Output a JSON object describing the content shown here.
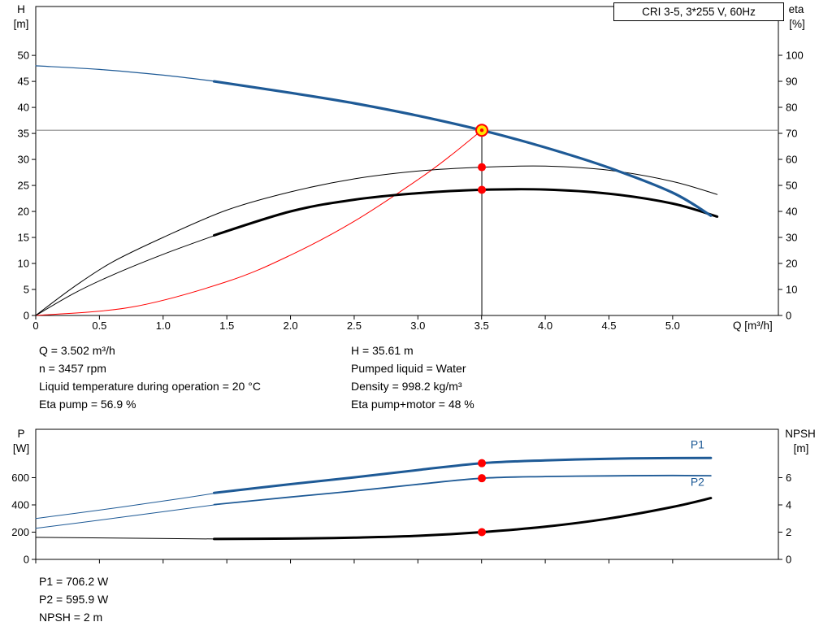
{
  "title_box": {
    "label": "CRI 3-5, 3*255 V, 60Hz"
  },
  "colors": {
    "curve_blue": "#1e5a96",
    "curve_black": "#000000",
    "curve_red": "#ff0000",
    "ref_gray": "#8c8c8c",
    "duty_fill": "#ffe400",
    "dot_red": "#ff0000"
  },
  "chart_data": [
    {
      "type": "line",
      "name": "head-and-efficiency-vs-flow",
      "x_axis": {
        "title": "Q [m³/h]",
        "min": 0,
        "max": 5.83,
        "tick_values": [
          0,
          0.5,
          1,
          1.5,
          2,
          2.5,
          3,
          3.5,
          4,
          4.5,
          5
        ],
        "tick_labels": [
          "0",
          "0.5",
          "1.0",
          "1.5",
          "2.0",
          "2.5",
          "3.0",
          "3.5",
          "4.0",
          "4.5",
          "5.0"
        ]
      },
      "y_left_axis": {
        "title_line1": "H",
        "title_line2": "[m]",
        "min": 0,
        "max": 59.4,
        "tick_values": [
          0,
          5,
          10,
          15,
          20,
          25,
          30,
          35,
          40,
          45,
          50
        ],
        "tick_labels": [
          "0",
          "5",
          "10",
          "15",
          "20",
          "25",
          "30",
          "35",
          "40",
          "45",
          "50"
        ]
      },
      "y_right_axis": {
        "title_line1": "eta",
        "title_line2": "[%]",
        "min": 0,
        "max": 118.75,
        "tick_values": [
          0,
          10,
          20,
          30,
          40,
          50,
          60,
          70,
          80,
          90,
          100
        ],
        "tick_labels": [
          "0",
          "10",
          "20",
          "30",
          "40",
          "50",
          "60",
          "70",
          "80",
          "90",
          "100"
        ]
      },
      "series": [
        {
          "name": "system-curve",
          "axis": "left",
          "color": "curve_red",
          "width": 1,
          "points": [
            [
              0,
              0
            ],
            [
              0.75,
              1.6
            ],
            [
              1.5,
              6.5
            ],
            [
              2.0,
              11.6
            ],
            [
              2.5,
              18.1
            ],
            [
              3.0,
              26.1
            ],
            [
              3.25,
              30.6
            ],
            [
              3.502,
              35.61
            ]
          ]
        },
        {
          "name": "eta-pump-curve",
          "axis": "right",
          "color": "curve_black",
          "width": 1,
          "points": [
            [
              0,
              0
            ],
            [
              0.3,
              11
            ],
            [
              0.6,
              20.5
            ],
            [
              1.0,
              30
            ],
            [
              1.5,
              40.5
            ],
            [
              2.0,
              47.5
            ],
            [
              2.5,
              52.5
            ],
            [
              3.0,
              55.5
            ],
            [
              3.502,
              57
            ],
            [
              4.0,
              57.4
            ],
            [
              4.5,
              55.8
            ],
            [
              5.0,
              51.5
            ],
            [
              5.35,
              46.5
            ]
          ]
        },
        {
          "name": "eta-pump-motor-curve-ext",
          "axis": "right",
          "color": "curve_black",
          "width": 1,
          "points": [
            [
              0,
              0
            ],
            [
              0.3,
              8.5
            ],
            [
              0.6,
              15.5
            ],
            [
              1.0,
              23.5
            ],
            [
              1.42,
              31
            ]
          ]
        },
        {
          "name": "eta-pump-motor-curve",
          "axis": "right",
          "color": "curve_black",
          "width": 3,
          "points": [
            [
              1.4,
              30.8
            ],
            [
              2.0,
              40
            ],
            [
              2.5,
              44.5
            ],
            [
              3.0,
              47
            ],
            [
              3.502,
              48.3
            ],
            [
              4.0,
              48.4
            ],
            [
              4.5,
              46.8
            ],
            [
              5.0,
              43
            ],
            [
              5.35,
              38
            ]
          ]
        },
        {
          "name": "head-curve-ext",
          "axis": "left",
          "color": "curve_blue",
          "width": 1.2,
          "points": [
            [
              0,
              48.0
            ],
            [
              0.5,
              47.3
            ],
            [
              1.0,
              46.2
            ],
            [
              1.45,
              44.9
            ]
          ]
        },
        {
          "name": "head-curve",
          "axis": "left",
          "color": "curve_blue",
          "width": 3.2,
          "points": [
            [
              1.4,
              45.0
            ],
            [
              2.0,
              42.8
            ],
            [
              2.5,
              40.8
            ],
            [
              3.0,
              38.4
            ],
            [
              3.502,
              35.61
            ],
            [
              4.0,
              32.3
            ],
            [
              4.5,
              28.4
            ],
            [
              5.0,
              23.6
            ],
            [
              5.3,
              19.2
            ]
          ]
        }
      ],
      "ref_lines": {
        "vertical_q": 3.502,
        "horizontal_value": 35.61
      },
      "markers": [
        {
          "name": "duty-point",
          "q": 3.502,
          "value": 35.61,
          "axis": "left",
          "style": "duty"
        },
        {
          "name": "eta-pump-point",
          "q": 3.502,
          "value": 57,
          "axis": "right",
          "style": "dot"
        },
        {
          "name": "eta-pump-motor-point",
          "q": 3.502,
          "value": 48.3,
          "axis": "right",
          "style": "dot"
        }
      ],
      "series_labels": []
    },
    {
      "type": "line",
      "name": "power-and-npsh-vs-flow",
      "x_axis": {
        "title": "",
        "min": 0,
        "max": 5.83,
        "tick_values": [
          0,
          0.5,
          1,
          1.5,
          2,
          2.5,
          3,
          3.5,
          4,
          4.5,
          5
        ],
        "tick_labels": []
      },
      "y_left_axis": {
        "title_line1": "P",
        "title_line2": "[W]",
        "min": 0,
        "max": 955,
        "tick_values": [
          0,
          200,
          400,
          600
        ],
        "tick_labels": [
          "0",
          "200",
          "400",
          "600"
        ]
      },
      "y_right_axis": {
        "title_line1": "NPSH",
        "title_line2": "[m]",
        "min": 0,
        "max": 9.55,
        "tick_values": [
          0,
          2,
          4,
          6
        ],
        "tick_labels": [
          "0",
          "2",
          "4",
          "6"
        ]
      },
      "series": [
        {
          "name": "npsh-curve-ext",
          "axis": "right",
          "color": "curve_black",
          "width": 1,
          "points": [
            [
              0,
              1.62
            ],
            [
              0.7,
              1.56
            ],
            [
              1.4,
              1.5
            ]
          ]
        },
        {
          "name": "npsh-curve",
          "axis": "right",
          "color": "curve_black",
          "width": 3,
          "points": [
            [
              1.4,
              1.5
            ],
            [
              2.0,
              1.53
            ],
            [
              2.5,
              1.6
            ],
            [
              3.0,
              1.73
            ],
            [
              3.502,
              2.0
            ],
            [
              4.0,
              2.4
            ],
            [
              4.5,
              3.0
            ],
            [
              5.0,
              3.85
            ],
            [
              5.3,
              4.5
            ]
          ]
        },
        {
          "name": "p2-curve-ext",
          "axis": "left",
          "color": "curve_blue",
          "width": 1,
          "points": [
            [
              0,
              228
            ],
            [
              0.5,
              288
            ],
            [
              1.0,
              350
            ],
            [
              1.45,
              406
            ]
          ]
        },
        {
          "name": "p2-curve",
          "axis": "left",
          "color": "curve_blue",
          "width": 1.8,
          "points": [
            [
              1.4,
              402
            ],
            [
              2.0,
              458
            ],
            [
              2.5,
              502
            ],
            [
              3.0,
              551
            ],
            [
              3.502,
              595.9
            ],
            [
              4.0,
              608
            ],
            [
              4.5,
              613
            ],
            [
              5.0,
              616
            ],
            [
              5.3,
              614
            ]
          ]
        },
        {
          "name": "p1-curve-ext",
          "axis": "left",
          "color": "curve_blue",
          "width": 1,
          "points": [
            [
              0,
              300
            ],
            [
              0.5,
              362
            ],
            [
              1.0,
              428
            ],
            [
              1.45,
              492
            ]
          ]
        },
        {
          "name": "p1-curve",
          "axis": "left",
          "color": "curve_blue",
          "width": 3,
          "points": [
            [
              1.4,
              488
            ],
            [
              2.0,
              552
            ],
            [
              2.5,
              602
            ],
            [
              3.0,
              656
            ],
            [
              3.502,
              706.2
            ],
            [
              4.0,
              727
            ],
            [
              4.5,
              739
            ],
            [
              5.0,
              744
            ],
            [
              5.3,
              745
            ]
          ]
        }
      ],
      "markers": [
        {
          "name": "p1-point",
          "q": 3.502,
          "value": 706.2,
          "axis": "left",
          "style": "dot"
        },
        {
          "name": "p2-point",
          "q": 3.502,
          "value": 595.9,
          "axis": "left",
          "style": "dot"
        },
        {
          "name": "npsh-point",
          "q": 3.502,
          "value": 2.0,
          "axis": "right",
          "style": "dot"
        }
      ],
      "series_labels": [
        {
          "text": "P1",
          "q": 5.14,
          "value": 815,
          "axis": "left",
          "color": "curve_blue"
        },
        {
          "text": "P2",
          "q": 5.14,
          "value": 540,
          "axis": "left",
          "color": "curve_blue"
        }
      ]
    }
  ],
  "top_info": {
    "left": [
      "Q = 3.502 m³/h",
      "n = 3457 rpm",
      "Liquid temperature during operation = 20 °C",
      "Eta pump = 56.9 %"
    ],
    "right": [
      "H = 35.61 m",
      "Pumped liquid = Water",
      "Density = 998.2 kg/m³",
      "Eta pump+motor = 48 %"
    ]
  },
  "bottom_info": [
    "P1 = 706.2 W",
    "P2 = 595.9 W",
    "NPSH = 2 m"
  ]
}
